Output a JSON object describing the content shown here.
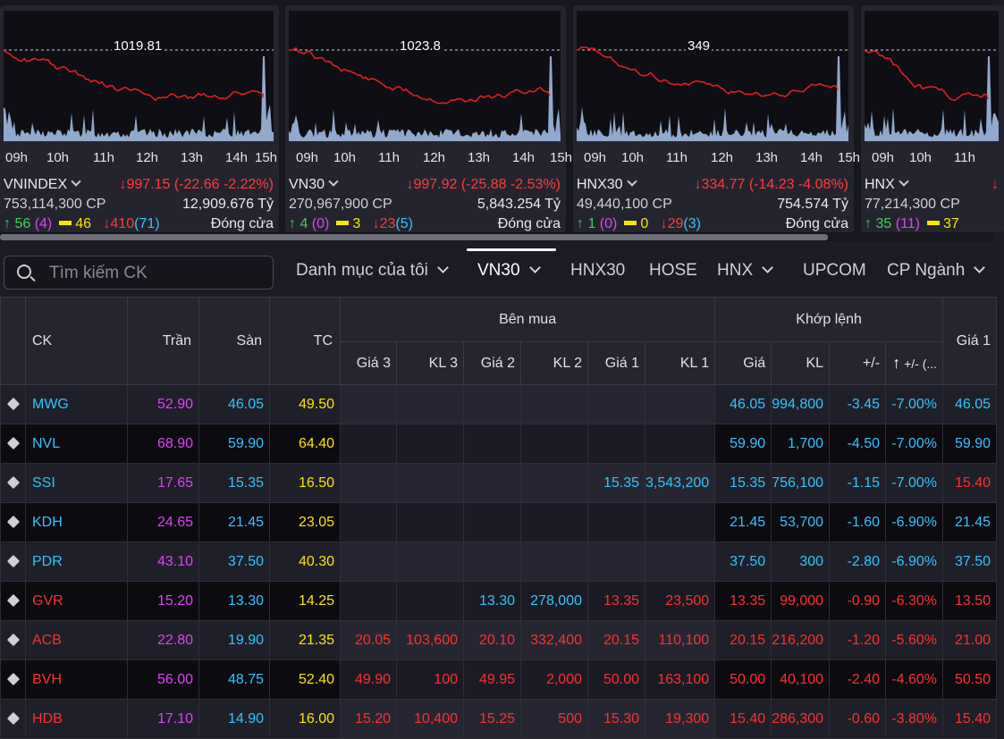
{
  "indices": [
    {
      "name": "VNINDEX",
      "ref": "1019.81",
      "change": "↓997.15 (-22.66 -2.22%)",
      "volume": "753,114,300 CP",
      "value": "12,909.676 Tỷ",
      "up": "↑ 56",
      "ceil": "(4)",
      "ref_count": "46",
      "down": "↓410",
      "floor": "(71)",
      "status": "Đóng cửa",
      "times": [
        "09h",
        "10h",
        "11h",
        "12h",
        "13h",
        "14h",
        "15h"
      ]
    },
    {
      "name": "VN30",
      "ref": "1023.8",
      "change": "↓997.92 (-25.88 -2.53%)",
      "volume": "270,967,900 CP",
      "value": "5,843.254 Tỷ",
      "up": "↑ 4",
      "ceil": "(0)",
      "ref_count": "3",
      "down": "↓23",
      "floor": "(5)",
      "status": "Đóng cửa",
      "times": [
        "09h",
        "10h",
        "11h",
        "12h",
        "13h",
        "14h",
        "15h"
      ]
    },
    {
      "name": "HNX30",
      "ref": "349",
      "change": "↓334.77 (-14.23 -4.08%)",
      "volume": "49,440,100 CP",
      "value": "754.574 Tỷ",
      "up": "↑ 1",
      "ceil": "(0)",
      "ref_count": "0",
      "down": "↓29",
      "floor": "(3)",
      "status": "Đóng cửa",
      "times": [
        "09h",
        "10h",
        "11h",
        "12h",
        "13h",
        "14h",
        "15h"
      ]
    },
    {
      "name": "HNX",
      "ref": "",
      "change": "↓",
      "volume": "77,214,300 CP",
      "value": "",
      "up": "↑ 35",
      "ceil": "(11)",
      "ref_count": "37",
      "down": "",
      "floor": "",
      "status": "",
      "times": [
        "09h",
        "10h",
        "11h"
      ]
    }
  ],
  "search": {
    "placeholder": "Tìm kiếm CK"
  },
  "tabs": [
    {
      "label": "Danh mục của tôi",
      "dropdown": true
    },
    {
      "label": "VN30",
      "dropdown": true,
      "active": true
    },
    {
      "label": "HNX30",
      "dropdown": false
    },
    {
      "label": "HOSE",
      "dropdown": false
    },
    {
      "label": "HNX",
      "dropdown": true
    },
    {
      "label": "UPCOM",
      "dropdown": false
    },
    {
      "label": "CP Ngành",
      "dropdown": true
    }
  ],
  "table": {
    "group_headers": {
      "buy": "Bên mua",
      "match": "Khớp lệnh"
    },
    "headers": {
      "ck": "CK",
      "ceil": "Trần",
      "floor": "Sàn",
      "ref": "TC",
      "g3": "Giá 3",
      "k3": "KL 3",
      "g2": "Giá 2",
      "k2": "KL 2",
      "g1": "Giá 1",
      "k1": "KL 1",
      "price": "Giá",
      "vol": "KL",
      "chg": "+/-",
      "pct": "+/- (...",
      "sg1": "Giá 1"
    },
    "rows": [
      {
        "ck": "MWG",
        "ceil": "52.90",
        "floor": "46.05",
        "ref": "49.50",
        "g3": "",
        "k3": "",
        "g2": "",
        "k2": "",
        "g1": "",
        "k1": "",
        "price": "46.05",
        "vol": "994,800",
        "chg": "-3.45",
        "pct": "-7.00%",
        "sg1": "46.05",
        "color": "cyan",
        "sg1c": "cyan",
        "g1c": "cyan",
        "g2c": "cyan",
        "g3c": "cyan"
      },
      {
        "ck": "NVL",
        "ceil": "68.90",
        "floor": "59.90",
        "ref": "64.40",
        "g3": "",
        "k3": "",
        "g2": "",
        "k2": "",
        "g1": "",
        "k1": "",
        "price": "59.90",
        "vol": "1,700",
        "chg": "-4.50",
        "pct": "-7.00%",
        "sg1": "59.90",
        "color": "cyan",
        "sg1c": "cyan",
        "g1c": "cyan",
        "g2c": "cyan",
        "g3c": "cyan"
      },
      {
        "ck": "SSI",
        "ceil": "17.65",
        "floor": "15.35",
        "ref": "16.50",
        "g3": "",
        "k3": "",
        "g2": "",
        "k2": "",
        "g1": "15.35",
        "k1": "3,543,200",
        "price": "15.35",
        "vol": "756,100",
        "chg": "-1.15",
        "pct": "-7.00%",
        "sg1": "15.40",
        "color": "cyan",
        "sg1c": "red",
        "g1c": "cyan",
        "g2c": "cyan",
        "g3c": "cyan"
      },
      {
        "ck": "KDH",
        "ceil": "24.65",
        "floor": "21.45",
        "ref": "23.05",
        "g3": "",
        "k3": "",
        "g2": "",
        "k2": "",
        "g1": "",
        "k1": "",
        "price": "21.45",
        "vol": "53,700",
        "chg": "-1.60",
        "pct": "-6.90%",
        "sg1": "21.45",
        "color": "cyan",
        "sg1c": "cyan",
        "g1c": "cyan",
        "g2c": "cyan",
        "g3c": "cyan"
      },
      {
        "ck": "PDR",
        "ceil": "43.10",
        "floor": "37.50",
        "ref": "40.30",
        "g3": "",
        "k3": "",
        "g2": "",
        "k2": "",
        "g1": "",
        "k1": "",
        "price": "37.50",
        "vol": "300",
        "chg": "-2.80",
        "pct": "-6.90%",
        "sg1": "37.50",
        "color": "cyan",
        "sg1c": "cyan",
        "g1c": "cyan",
        "g2c": "cyan",
        "g3c": "cyan"
      },
      {
        "ck": "GVR",
        "ceil": "15.20",
        "floor": "13.30",
        "ref": "14.25",
        "g3": "",
        "k3": "",
        "g2": "13.30",
        "k2": "278,000",
        "g1": "13.35",
        "k1": "23,500",
        "price": "13.35",
        "vol": "99,000",
        "chg": "-0.90",
        "pct": "-6.30%",
        "sg1": "13.50",
        "color": "red",
        "sg1c": "red",
        "g1c": "red",
        "g2c": "cyan",
        "g3c": "red"
      },
      {
        "ck": "ACB",
        "ceil": "22.80",
        "floor": "19.90",
        "ref": "21.35",
        "g3": "20.05",
        "k3": "103,600",
        "g2": "20.10",
        "k2": "332,400",
        "g1": "20.15",
        "k1": "110,100",
        "price": "20.15",
        "vol": "216,200",
        "chg": "-1.20",
        "pct": "-5.60%",
        "sg1": "21.00",
        "color": "red",
        "sg1c": "red",
        "g1c": "red",
        "g2c": "red",
        "g3c": "red"
      },
      {
        "ck": "BVH",
        "ceil": "56.00",
        "floor": "48.75",
        "ref": "52.40",
        "g3": "49.90",
        "k3": "100",
        "g2": "49.95",
        "k2": "2,000",
        "g1": "50.00",
        "k1": "163,100",
        "price": "50.00",
        "vol": "40,100",
        "chg": "-2.40",
        "pct": "-4.60%",
        "sg1": "50.50",
        "color": "red",
        "sg1c": "red",
        "g1c": "red",
        "g2c": "red",
        "g3c": "red"
      },
      {
        "ck": "HDB",
        "ceil": "17.10",
        "floor": "14.90",
        "ref": "16.00",
        "g3": "15.20",
        "k3": "10,400",
        "g2": "15.25",
        "k2": "500",
        "g1": "15.30",
        "k1": "19,300",
        "price": "15.40",
        "vol": "286,300",
        "chg": "-0.60",
        "pct": "-3.80%",
        "sg1": "15.40",
        "color": "red",
        "sg1c": "red",
        "g1c": "red",
        "g2c": "red",
        "g3c": "red"
      }
    ]
  },
  "colors": {
    "up": "#3fd15a",
    "down": "#ff2f2f",
    "ceil": "#e040fb",
    "floor": "#33c3ff",
    "ref": "#f7e600",
    "line": "#e01e1e",
    "volume": "#a8c4ec"
  }
}
